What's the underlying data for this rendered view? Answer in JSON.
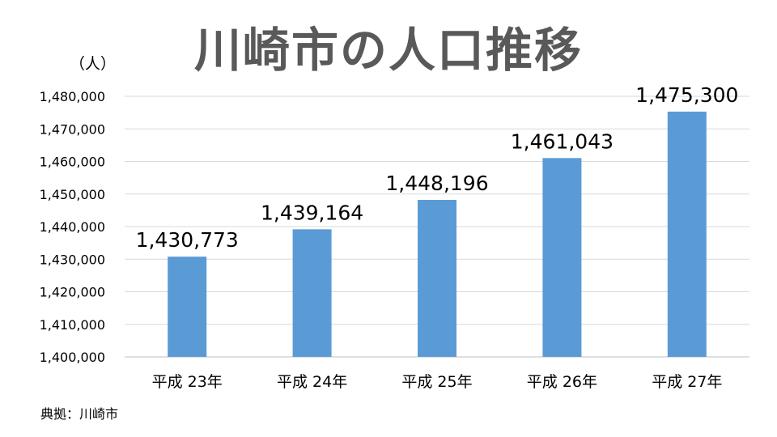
{
  "page": {
    "title": "川崎市の人口推移",
    "unit_label": "（人）",
    "source": "典拠：川崎市"
  },
  "colors": {
    "bar": "#5b9bd5",
    "title": "#595959",
    "grid": "#d9d9d9",
    "axis": "#bfbfbf"
  },
  "chart_data": {
    "type": "bar",
    "title": "川崎市の人口推移",
    "xlabel": "",
    "ylabel": "（人）",
    "categories": [
      "平成 23年",
      "平成 24年",
      "平成 25年",
      "平成 26年",
      "平成 27年"
    ],
    "values": [
      1430773,
      1439164,
      1448196,
      1461043,
      1475300
    ],
    "value_labels": [
      "1,430,773",
      "1,439,164",
      "1,448,196",
      "1,461,043",
      "1,475,300"
    ],
    "ylim": [
      1400000,
      1480000
    ],
    "yticks": [
      1400000,
      1410000,
      1420000,
      1430000,
      1440000,
      1450000,
      1460000,
      1470000,
      1480000
    ],
    "ytick_labels": [
      "1,400,000",
      "1,410,000",
      "1,420,000",
      "1,430,000",
      "1,440,000",
      "1,450,000",
      "1,460,000",
      "1,470,000",
      "1,480,000"
    ],
    "grid": true,
    "legend": "none"
  }
}
